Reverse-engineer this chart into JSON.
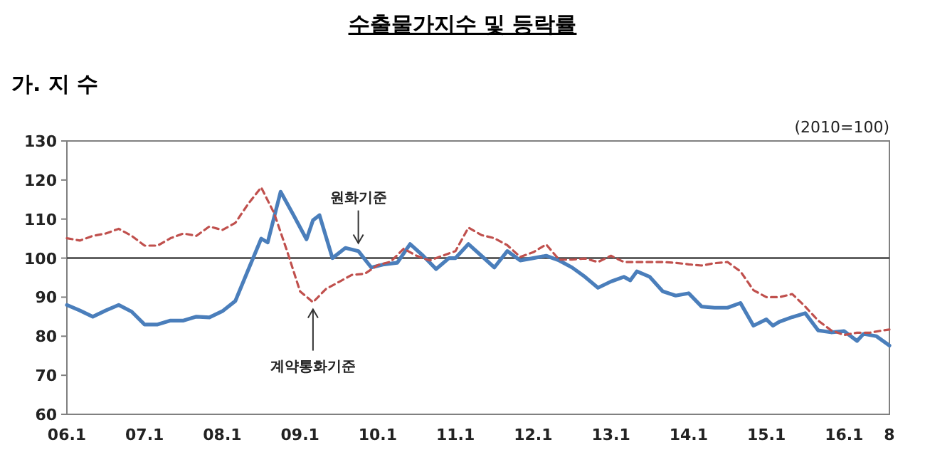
{
  "chart_data": {
    "type": "line",
    "title": "수출물가지수 및 등락률",
    "subtitle": "가. 지 수",
    "annotations": [
      "(2010=100)",
      {
        "text": "원화기준",
        "x": "2009-10",
        "y": 102
      },
      {
        "text": "계약통화기준",
        "x": "2009-03",
        "y": 88.7
      }
    ],
    "xlim": [
      "2006-01",
      "2016-08"
    ],
    "xticks": [
      {
        "value": "2006-01",
        "label": "06.1"
      },
      {
        "value": "2007-01",
        "label": "07.1"
      },
      {
        "value": "2008-01",
        "label": "08.1"
      },
      {
        "value": "2009-01",
        "label": "09.1"
      },
      {
        "value": "2010-01",
        "label": "10.1"
      },
      {
        "value": "2011-01",
        "label": "11.1"
      },
      {
        "value": "2012-01",
        "label": "12.1"
      },
      {
        "value": "2013-01",
        "label": "13.1"
      },
      {
        "value": "2014-01",
        "label": "14.1"
      },
      {
        "value": "2015-01",
        "label": "15.1"
      },
      {
        "value": "2016-01",
        "label": "16.1"
      },
      {
        "value": "2016-08",
        "label": "8"
      }
    ],
    "ylim": [
      60,
      130
    ],
    "yticks": [
      60,
      70,
      80,
      90,
      100,
      110,
      120,
      130
    ],
    "grid": false,
    "marker": "none",
    "ref_lines": [
      {
        "axis": "y",
        "value": 100,
        "color": "#404040"
      }
    ],
    "series": [
      {
        "color": "#4a7ebb",
        "line_style": "solid",
        "x": [
          "2006-01",
          "2006-03",
          "2006-05",
          "2006-07",
          "2006-09",
          "2006-11",
          "2007-01",
          "2007-03",
          "2007-05",
          "2007-07",
          "2007-09",
          "2007-11",
          "2008-01",
          "2008-03",
          "2008-05",
          "2008-07",
          "2008-08",
          "2008-10",
          "2008-12",
          "2009-02",
          "2009-03",
          "2009-04",
          "2009-06",
          "2009-08",
          "2009-10",
          "2009-12",
          "2010-02",
          "2010-04",
          "2010-06",
          "2010-08",
          "2010-10",
          "2010-12",
          "2011-01",
          "2011-03",
          "2011-05",
          "2011-07",
          "2011-09",
          "2011-11",
          "2012-01",
          "2012-03",
          "2012-05",
          "2012-07",
          "2012-09",
          "2012-11",
          "2013-01",
          "2013-03",
          "2013-04",
          "2013-05",
          "2013-07",
          "2013-09",
          "2013-11",
          "2014-01",
          "2014-03",
          "2014-05",
          "2014-07",
          "2014-09",
          "2014-11",
          "2015-01",
          "2015-02",
          "2015-03",
          "2015-05",
          "2015-07",
          "2015-09",
          "2015-11",
          "2016-01",
          "2016-03",
          "2016-04",
          "2016-06",
          "2016-08"
        ],
        "values": [
          88,
          86.6,
          85,
          86.6,
          88,
          86.3,
          83,
          83,
          84,
          84,
          85,
          84.8,
          86.4,
          89,
          97,
          105,
          104,
          117,
          111,
          104.8,
          109.7,
          111,
          100,
          102.6,
          101.8,
          97.6,
          98.4,
          98.8,
          103.6,
          100.6,
          97.2,
          100,
          100,
          103.6,
          100.6,
          97.6,
          101.8,
          99.4,
          100,
          100.6,
          99.4,
          97.6,
          95.2,
          92.4,
          94,
          95.2,
          94.3,
          96.6,
          95.2,
          91.5,
          90.4,
          91,
          87.6,
          87.3,
          87.3,
          88.5,
          82.7,
          84.3,
          82.7,
          83.7,
          84.9,
          85.9,
          81.5,
          81,
          81.3,
          78.8,
          80.6,
          80,
          77.6
        ]
      },
      {
        "color": "#c0504d",
        "line_style": "dashed",
        "x": [
          "2006-01",
          "2006-03",
          "2006-05",
          "2006-07",
          "2006-09",
          "2006-11",
          "2007-01",
          "2007-03",
          "2007-05",
          "2007-07",
          "2007-09",
          "2007-11",
          "2008-01",
          "2008-03",
          "2008-05",
          "2008-07",
          "2008-09",
          "2008-11",
          "2009-01",
          "2009-03",
          "2009-05",
          "2009-07",
          "2009-09",
          "2009-11",
          "2010-01",
          "2010-03",
          "2010-05",
          "2010-07",
          "2010-09",
          "2010-11",
          "2011-01",
          "2011-03",
          "2011-05",
          "2011-07",
          "2011-09",
          "2011-11",
          "2012-01",
          "2012-03",
          "2012-05",
          "2012-07",
          "2012-09",
          "2012-11",
          "2013-01",
          "2013-03",
          "2013-05",
          "2013-07",
          "2013-09",
          "2013-11",
          "2014-01",
          "2014-03",
          "2014-05",
          "2014-07",
          "2014-09",
          "2014-11",
          "2015-01",
          "2015-03",
          "2015-05",
          "2015-07",
          "2015-09",
          "2015-11",
          "2016-01",
          "2016-03",
          "2016-05",
          "2016-07",
          "2016-08"
        ],
        "values": [
          105.1,
          104.5,
          105.7,
          106.3,
          107.5,
          105.7,
          103.2,
          103.2,
          105.1,
          106.3,
          105.7,
          108.1,
          107.2,
          109,
          113.9,
          118.1,
          111.5,
          101.8,
          91.5,
          88.7,
          92.1,
          93.9,
          95.7,
          96,
          98.2,
          99.1,
          102.4,
          100.6,
          99.4,
          100.6,
          101.8,
          107.8,
          105.9,
          105.1,
          103.3,
          100.3,
          101.5,
          103.5,
          99.6,
          99.6,
          99.9,
          99,
          100.6,
          99,
          99,
          99,
          99,
          98.8,
          98.4,
          98.1,
          98.7,
          99,
          96.6,
          91.8,
          90,
          90,
          90.8,
          87.6,
          84,
          81.5,
          80.3,
          80.9,
          80.9,
          81.5,
          81.7
        ]
      }
    ]
  }
}
